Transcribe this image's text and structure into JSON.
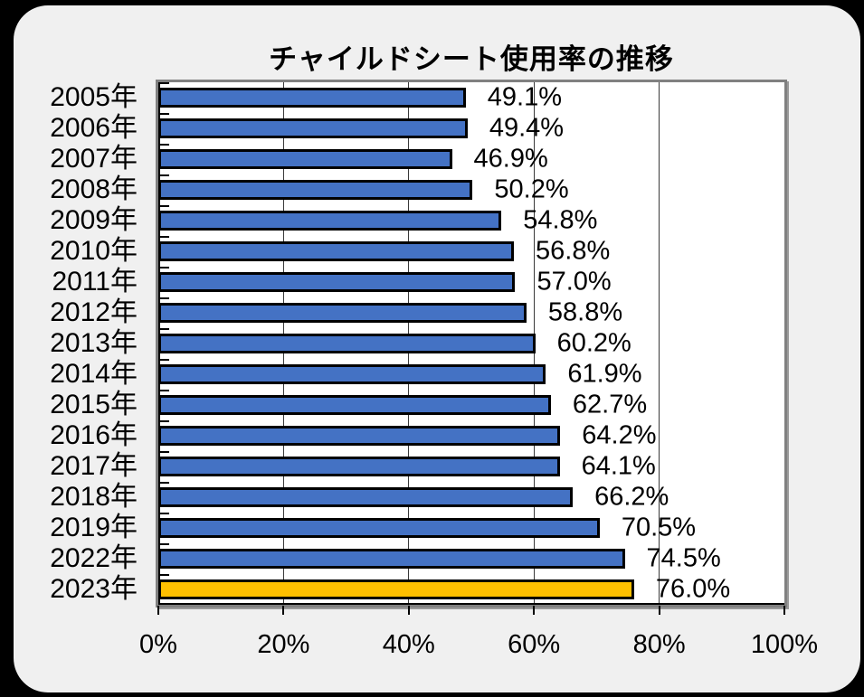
{
  "page": {
    "background": "#000000",
    "panel_background": "#F0F0F0"
  },
  "chart_data": {
    "type": "bar",
    "orientation": "horizontal",
    "title": "チャイルドシート使用率の推移",
    "categories": [
      "2005年",
      "2006年",
      "2007年",
      "2008年",
      "2009年",
      "2010年",
      "2011年",
      "2012年",
      "2013年",
      "2014年",
      "2015年",
      "2016年",
      "2017年",
      "2018年",
      "2019年",
      "2022年",
      "2023年"
    ],
    "values": [
      49.1,
      49.4,
      46.9,
      50.2,
      54.8,
      56.8,
      57.0,
      58.8,
      60.2,
      61.9,
      62.7,
      64.2,
      64.1,
      66.2,
      70.5,
      74.5,
      76.0
    ],
    "value_labels": [
      "49.1%",
      "49.4%",
      "46.9%",
      "50.2%",
      "54.8%",
      "56.8%",
      "57.0%",
      "58.8%",
      "60.2%",
      "61.9%",
      "62.7%",
      "64.2%",
      "64.1%",
      "66.2%",
      "70.5%",
      "74.5%",
      "76.0%"
    ],
    "xlabel": "",
    "ylabel": "",
    "xlim": [
      0,
      100
    ],
    "x_tick_values": [
      0,
      20,
      40,
      60,
      80,
      100
    ],
    "x_tick_labels": [
      "0%",
      "20%",
      "40%",
      "60%",
      "80%",
      "100%"
    ],
    "gridline_values": [
      20,
      40,
      60,
      80
    ],
    "legend": "none",
    "highlight_index": 16,
    "colors": {
      "bar_default": "#4472C4",
      "bar_highlight": "#FFC000",
      "bar_border": "#000000",
      "plot_background": "#FFFFFF",
      "plot_border": "#808080",
      "gridline": "#3a3a3a",
      "text": "#000000"
    }
  }
}
